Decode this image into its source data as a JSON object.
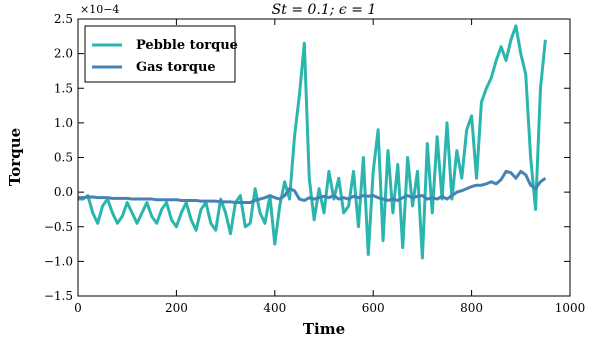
{
  "chart_data": {
    "type": "line",
    "title": "St = 0.1; ϵ = 1",
    "x_label": "Time",
    "y_label": "Torque",
    "y_offset_label": "×10−4",
    "x": [
      0,
      10,
      20,
      30,
      40,
      50,
      60,
      70,
      80,
      90,
      100,
      110,
      120,
      130,
      140,
      150,
      160,
      170,
      180,
      190,
      200,
      210,
      220,
      230,
      240,
      250,
      260,
      270,
      280,
      290,
      300,
      310,
      320,
      330,
      340,
      350,
      360,
      370,
      380,
      390,
      400,
      410,
      420,
      430,
      440,
      450,
      460,
      470,
      480,
      490,
      500,
      510,
      520,
      530,
      540,
      550,
      560,
      570,
      580,
      590,
      600,
      610,
      620,
      630,
      640,
      650,
      660,
      670,
      680,
      690,
      700,
      710,
      720,
      730,
      740,
      750,
      760,
      770,
      780,
      790,
      800,
      810,
      820,
      830,
      840,
      850,
      860,
      870,
      880,
      890,
      900,
      910,
      920,
      930,
      940,
      950
    ],
    "series": [
      {
        "name": "Pebble torque",
        "color": "#2ab5ae",
        "values": [
          -0.1,
          -0.1,
          -0.05,
          -0.3,
          -0.45,
          -0.2,
          -0.1,
          -0.3,
          -0.45,
          -0.35,
          -0.15,
          -0.3,
          -0.45,
          -0.3,
          -0.15,
          -0.35,
          -0.45,
          -0.25,
          -0.15,
          -0.4,
          -0.5,
          -0.3,
          -0.15,
          -0.4,
          -0.55,
          -0.25,
          -0.15,
          -0.45,
          -0.55,
          -0.1,
          -0.3,
          -0.6,
          -0.15,
          -0.05,
          -0.5,
          -0.45,
          0.05,
          -0.3,
          -0.45,
          -0.05,
          -0.75,
          -0.2,
          0.15,
          -0.1,
          0.8,
          1.4,
          2.15,
          0.2,
          -0.4,
          0.05,
          -0.3,
          0.3,
          -0.1,
          0.2,
          -0.3,
          -0.2,
          0.3,
          -0.5,
          0.5,
          -0.9,
          0.3,
          0.9,
          -0.7,
          0.6,
          -0.3,
          0.4,
          -0.8,
          0.5,
          -0.2,
          0.3,
          -0.95,
          0.7,
          -0.3,
          0.8,
          -0.1,
          1.0,
          -0.1,
          0.6,
          0.2,
          0.9,
          1.1,
          0.2,
          1.3,
          1.5,
          1.65,
          1.9,
          2.1,
          1.9,
          2.2,
          2.4,
          2.0,
          1.7,
          0.5,
          -0.25,
          1.5,
          2.2
        ]
      },
      {
        "name": "Gas torque",
        "color": "#4682b4",
        "values": [
          -0.08,
          -0.08,
          -0.07,
          -0.07,
          -0.08,
          -0.08,
          -0.08,
          -0.09,
          -0.09,
          -0.09,
          -0.09,
          -0.1,
          -0.1,
          -0.1,
          -0.1,
          -0.1,
          -0.11,
          -0.11,
          -0.11,
          -0.11,
          -0.11,
          -0.12,
          -0.12,
          -0.12,
          -0.12,
          -0.13,
          -0.13,
          -0.13,
          -0.13,
          -0.14,
          -0.14,
          -0.14,
          -0.15,
          -0.15,
          -0.15,
          -0.15,
          -0.12,
          -0.1,
          -0.08,
          -0.05,
          -0.08,
          -0.1,
          -0.05,
          0.05,
          0.02,
          -0.1,
          -0.12,
          -0.08,
          -0.1,
          -0.08,
          -0.06,
          -0.08,
          -0.05,
          -0.1,
          -0.08,
          -0.1,
          -0.06,
          -0.08,
          -0.05,
          -0.06,
          -0.05,
          -0.08,
          -0.1,
          -0.12,
          -0.1,
          -0.12,
          -0.08,
          -0.05,
          -0.08,
          -0.06,
          -0.05,
          -0.1,
          -0.08,
          -0.1,
          -0.06,
          -0.1,
          -0.05,
          0,
          0.02,
          0.05,
          0.08,
          0.1,
          0.1,
          0.12,
          0.15,
          0.12,
          0.18,
          0.3,
          0.28,
          0.2,
          0.3,
          0.25,
          0.1,
          0.05,
          0.15,
          0.2
        ]
      }
    ],
    "xlim": [
      0,
      1000
    ],
    "xticks": [
      0,
      200,
      400,
      600,
      800,
      1000
    ],
    "ylim": [
      -1.5,
      2.5
    ],
    "yticks": [
      {
        "value": -1.5,
        "label": "−1.5"
      },
      {
        "value": -1.0,
        "label": "−1.0"
      },
      {
        "value": -0.5,
        "label": "−0.5"
      },
      {
        "value": 0,
        "label": "0.0"
      },
      0.5,
      {
        "value": 1.0,
        "label": "1.0"
      },
      1.5,
      {
        "value": 2.0,
        "label": "2.0"
      },
      2.5
    ],
    "legend": "upper left"
  }
}
